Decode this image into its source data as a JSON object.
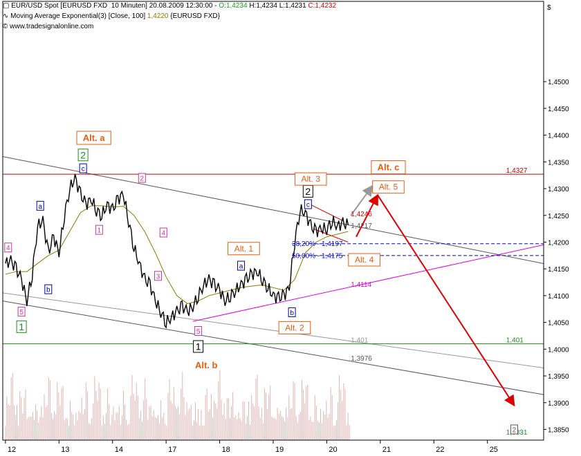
{
  "header": {
    "line1_main": "EUR/USD Spot [EURUSD FXD  10 Minuten] 20.08.2009 12:30:00 - ",
    "open": "O:1,4234",
    "high": " H:1,4234",
    "low": " L:1,4231",
    "close": " C:1,4232",
    "line2_main": "Moving Average Exponential(3) [Close, 100] ",
    "ma_value": "1,4220",
    "ma_tail": " {EURUSD FXD}",
    "line3": "www.tradesignalonline.com"
  },
  "chart_data": {
    "type": "line",
    "instrument": "EUR/USD Spot",
    "interval": "10 Minuten",
    "y_axis": {
      "currency_label": "$",
      "ylim": [
        1.383,
        1.465
      ],
      "ticks": [
        "1,4500",
        "1,4450",
        "1,4400",
        "1,4350",
        "1,4300",
        "1,4250",
        "1,4200",
        "1,4150",
        "1,4100",
        "1,4050",
        "1,4000",
        "1,3950",
        "1,3900",
        "1,3850"
      ],
      "tick_values": [
        1.45,
        1.445,
        1.44,
        1.435,
        1.43,
        1.425,
        1.42,
        1.415,
        1.41,
        1.405,
        1.4,
        1.395,
        1.39,
        1.385
      ]
    },
    "x_axis": {
      "ticks": [
        "12",
        "13",
        "14",
        "17",
        "18",
        "19",
        "20",
        "21",
        "22",
        "25"
      ],
      "tick_values": [
        0,
        1,
        2,
        3,
        4,
        5,
        6,
        7,
        8,
        9
      ],
      "xlim": [
        -0.05,
        10.05
      ]
    },
    "price_series": {
      "name": "EUR/USD",
      "color": "#000000",
      "x": [
        0,
        0.1,
        0.2,
        0.3,
        0.4,
        0.5,
        0.6,
        0.7,
        0.8,
        0.9,
        1.0,
        1.1,
        1.2,
        1.3,
        1.4,
        1.5,
        1.6,
        1.7,
        1.8,
        1.9,
        2.0,
        2.1,
        2.2,
        2.3,
        2.4,
        2.5,
        2.6,
        2.7,
        2.8,
        2.9,
        3.0,
        3.1,
        3.2,
        3.3,
        3.4,
        3.5,
        3.6,
        3.7,
        3.8,
        3.9,
        4.0,
        4.1,
        4.2,
        4.3,
        4.4,
        4.5,
        4.6,
        4.7,
        4.8,
        4.9,
        5.0,
        5.1,
        5.2,
        5.3,
        5.4,
        5.5,
        5.6,
        5.7,
        5.8,
        5.9,
        6.0,
        6.1,
        6.2,
        6.3,
        6.4
      ],
      "y": [
        1.416,
        1.4165,
        1.415,
        1.413,
        1.409,
        1.414,
        1.423,
        1.424,
        1.418,
        1.421,
        1.418,
        1.425,
        1.43,
        1.432,
        1.429,
        1.427,
        1.428,
        1.426,
        1.425,
        1.427,
        1.426,
        1.428,
        1.429,
        1.424,
        1.419,
        1.416,
        1.413,
        1.412,
        1.409,
        1.407,
        1.405,
        1.406,
        1.407,
        1.408,
        1.407,
        1.408,
        1.41,
        1.412,
        1.413,
        1.412,
        1.411,
        1.409,
        1.41,
        1.411,
        1.412,
        1.413,
        1.414,
        1.4145,
        1.413,
        1.4115,
        1.41,
        1.4095,
        1.41,
        1.4115,
        1.42,
        1.426,
        1.4255,
        1.423,
        1.422,
        1.4225,
        1.4225,
        1.424,
        1.423,
        1.4235,
        1.4232
      ]
    },
    "ema_series": {
      "name": "Moving Average Exponential(3) [Close, 100]",
      "color": "#7f7f00",
      "x": [
        0,
        0.2,
        0.4,
        0.6,
        0.8,
        1.0,
        1.2,
        1.4,
        1.6,
        1.8,
        2.0,
        2.2,
        2.4,
        2.6,
        2.8,
        3.0,
        3.2,
        3.4,
        3.6,
        3.8,
        4.0,
        4.2,
        4.4,
        4.6,
        4.8,
        5.0,
        5.2,
        5.4,
        5.6,
        5.8,
        6.0,
        6.2,
        6.4
      ],
      "y": [
        1.414,
        1.4145,
        1.4145,
        1.416,
        1.4175,
        1.4185,
        1.422,
        1.4255,
        1.4268,
        1.4268,
        1.4266,
        1.4267,
        1.425,
        1.422,
        1.418,
        1.4135,
        1.41,
        1.4085,
        1.409,
        1.41,
        1.4105,
        1.411,
        1.4115,
        1.4118,
        1.412,
        1.4115,
        1.411,
        1.413,
        1.418,
        1.42,
        1.421,
        1.4215,
        1.422
      ]
    },
    "volume": {
      "name": "Volume",
      "color": "#b35a5a"
    },
    "lines": [
      {
        "name": "upper-channel",
        "color": "#555555",
        "x1": -0.05,
        "y1": 1.436,
        "x2": 10.05,
        "y2": 1.416
      },
      {
        "name": "lower-channel",
        "color": "#555555",
        "x1": -0.05,
        "y1": 1.409,
        "x2": 10.05,
        "y2": 1.3915
      },
      {
        "name": "light-channel",
        "color": "#999999",
        "x1": -0.05,
        "y1": 1.4105,
        "x2": 10.05,
        "y2": 1.3965
      },
      {
        "name": "magenta-trend",
        "color": "#dd00dd",
        "x1": 3.5,
        "y1": 1.4052,
        "x2": 10.05,
        "y2": 1.4195
      },
      {
        "name": "red-resistance",
        "color": "#c00000",
        "x1": -0.05,
        "y1": 1.4327,
        "x2": 10.05,
        "y2": 1.4327
      },
      {
        "name": "green-support",
        "color": "#1e8a1e",
        "x1": -0.05,
        "y1": 1.401,
        "x2": 10.05,
        "y2": 1.401
      },
      {
        "name": "fib-382",
        "color": "#0000cc",
        "dashed": true,
        "x1": 5.35,
        "y1": 1.4197,
        "x2": 10.05,
        "y2": 1.4197
      },
      {
        "name": "fib-500",
        "color": "#0000cc",
        "dashed": true,
        "x1": 5.35,
        "y1": 1.4175,
        "x2": 10.05,
        "y2": 1.4175
      },
      {
        "name": "red-channel-top",
        "color": "#dd0000",
        "x1": 5.7,
        "y1": 1.427,
        "x2": 6.3,
        "y2": 1.424
      },
      {
        "name": "red-channel-bottom",
        "color": "#dd0000",
        "x1": 5.75,
        "y1": 1.4225,
        "x2": 6.4,
        "y2": 1.42
      }
    ],
    "level_labels": [
      {
        "text": "1,4327",
        "color": "#c00000",
        "x": 9.35,
        "y": 1.4327
      },
      {
        "text": "1,401",
        "color": "#1e8a1e",
        "x": 9.35,
        "y": 1.401
      },
      {
        "text": "1,401",
        "color": "#999999",
        "x": 6.45,
        "y": 1.401
      },
      {
        "text": "1,3976",
        "color": "#555555",
        "x": 6.45,
        "y": 1.3976
      },
      {
        "text": "1,4114",
        "color": "#dd00dd",
        "x": 6.45,
        "y": 1.4114
      },
      {
        "text": "1,4246",
        "color": "#dd0000",
        "x": 6.45,
        "y": 1.4246
      },
      {
        "text": "1,4217",
        "color": "#555555",
        "x": 6.45,
        "y": 1.4224
      },
      {
        "text": "38,20% - 1,4197",
        "color": "#0000cc",
        "x": 5.35,
        "y": 1.419
      },
      {
        "text": "50,00% - 1,4175",
        "color": "#0000cc",
        "x": 5.35,
        "y": 1.4168
      },
      {
        "text": "1,3831",
        "color": "#1e8a1e",
        "x": 9.35,
        "y": 1.3838
      }
    ],
    "wave_labels": [
      {
        "text": "1",
        "color": "#1e8a1e",
        "x": 0.3,
        "y": 1.4042,
        "size": "big"
      },
      {
        "text": "5",
        "color": "#cc3399",
        "x": 0.3,
        "y": 1.407,
        "size": "small"
      },
      {
        "text": "4",
        "color": "#cc3399",
        "x": 0.05,
        "y": 1.419,
        "size": "small"
      },
      {
        "text": "a",
        "color": "#000099",
        "x": 0.65,
        "y": 1.4268,
        "size": "small"
      },
      {
        "text": "b",
        "color": "#000099",
        "x": 0.8,
        "y": 1.4112,
        "size": "small"
      },
      {
        "text": "c",
        "color": "#000099",
        "x": 1.45,
        "y": 1.4338,
        "size": "small"
      },
      {
        "text": "2",
        "color": "#1e8a1e",
        "x": 1.45,
        "y": 1.4363,
        "size": "big"
      },
      {
        "text": "1",
        "color": "#cc3399",
        "x": 1.75,
        "y": 1.4223,
        "size": "small"
      },
      {
        "text": "2",
        "color": "#cc3399",
        "x": 2.55,
        "y": 1.432,
        "size": "small"
      },
      {
        "text": "4",
        "color": "#cc3399",
        "x": 2.95,
        "y": 1.4218,
        "size": "small"
      },
      {
        "text": "3",
        "color": "#cc3399",
        "x": 2.85,
        "y": 1.4137,
        "size": "small"
      },
      {
        "text": "5",
        "color": "#cc3399",
        "x": 3.6,
        "y": 1.4034,
        "size": "small"
      },
      {
        "text": "1",
        "color": "#000000",
        "x": 3.6,
        "y": 1.4005,
        "size": "big"
      },
      {
        "text": "a",
        "color": "#000099",
        "x": 4.4,
        "y": 1.4156,
        "size": "small"
      },
      {
        "text": "b",
        "color": "#000099",
        "x": 5.35,
        "y": 1.4069,
        "size": "small"
      },
      {
        "text": "c",
        "color": "#000099",
        "x": 5.65,
        "y": 1.4271,
        "size": "small"
      },
      {
        "text": "2",
        "color": "#000000",
        "x": 5.65,
        "y": 1.4295,
        "size": "big"
      },
      {
        "text": "2",
        "color": "#555555",
        "x": 9.5,
        "y": 1.385,
        "size": "small"
      }
    ],
    "alt_labels": [
      {
        "text": "Alt. a",
        "x": 1.65,
        "y": 1.4395,
        "bold": true,
        "boxed": true
      },
      {
        "text": "Alt. b",
        "x": 3.75,
        "y": 1.397,
        "bold": true,
        "boxed": false
      },
      {
        "text": "Alt. 1",
        "x": 4.45,
        "y": 1.4188,
        "bold": false,
        "boxed": true
      },
      {
        "text": "Alt. 2",
        "x": 5.4,
        "y": 1.404,
        "bold": false,
        "boxed": true
      },
      {
        "text": "Alt. 3",
        "x": 5.7,
        "y": 1.4318,
        "bold": false,
        "boxed": true
      },
      {
        "text": "Alt. 4",
        "x": 6.7,
        "y": 1.4167,
        "bold": false,
        "boxed": true
      },
      {
        "text": "Alt. c",
        "x": 7.15,
        "y": 1.434,
        "bold": true,
        "boxed": true
      },
      {
        "text": "Alt. 5",
        "x": 7.15,
        "y": 1.4303,
        "bold": false,
        "boxed": true
      }
    ],
    "arrows": [
      {
        "name": "grey-arrow-up",
        "color": "#999999",
        "x1": 6.45,
        "y1": 1.425,
        "x2": 6.85,
        "y2": 1.4305
      },
      {
        "name": "red-arrow-up",
        "color": "#dd0000",
        "x1": 6.55,
        "y1": 1.421,
        "x2": 6.95,
        "y2": 1.4288
      },
      {
        "name": "red-arrow-down",
        "color": "#dd0000",
        "x1": 6.95,
        "y1": 1.4288,
        "x2": 9.5,
        "y2": 1.3895
      }
    ]
  }
}
